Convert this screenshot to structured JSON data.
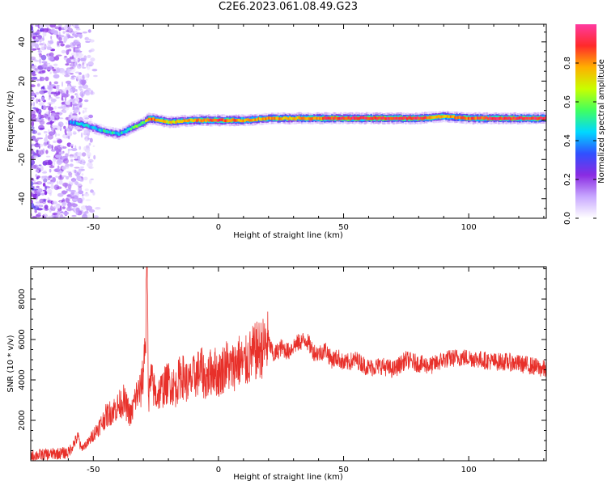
{
  "figure": {
    "title": "C2E6.2023.061.08.49.G23"
  },
  "chart_data": [
    {
      "type": "heatmap",
      "xlabel": "Height of straight line (km)",
      "ylabel": "Frequency (Hz)",
      "xlim": [
        -75,
        131
      ],
      "ylim": [
        -50,
        49
      ],
      "xticks": [
        -50,
        0,
        50,
        100
      ],
      "yticks": [
        -40,
        -20,
        0,
        20,
        40
      ],
      "colorbar": {
        "label": "Normalized spectral amplitude",
        "range": [
          0,
          1
        ],
        "ticks": [
          0.0,
          0.2,
          0.4,
          0.6,
          0.8
        ],
        "colors": [
          "#ffffff",
          "#c8a8ff",
          "#8a2be2",
          "#3050ff",
          "#00d8ff",
          "#40ff60",
          "#c8ff00",
          "#ffb000",
          "#ff2a2a",
          "#ff3aa0"
        ]
      },
      "noise_region_x": [
        -75,
        -48
      ],
      "ridge": [
        {
          "x": -60,
          "y": -1,
          "amp": 0.35
        },
        {
          "x": -55,
          "y": -2,
          "amp": 0.45
        },
        {
          "x": -50,
          "y": -4,
          "amp": 0.4
        },
        {
          "x": -45,
          "y": -6,
          "amp": 0.5
        },
        {
          "x": -40,
          "y": -7,
          "amp": 0.45
        },
        {
          "x": -35,
          "y": -4,
          "amp": 0.55
        },
        {
          "x": -30,
          "y": -1,
          "amp": 0.6
        },
        {
          "x": -28,
          "y": 1,
          "amp": 0.85
        },
        {
          "x": -20,
          "y": -1,
          "amp": 0.7
        },
        {
          "x": -10,
          "y": 0,
          "amp": 0.8
        },
        {
          "x": 0,
          "y": 0,
          "amp": 0.9
        },
        {
          "x": 10,
          "y": 0,
          "amp": 0.75
        },
        {
          "x": 20,
          "y": 1,
          "amp": 0.8
        },
        {
          "x": 30,
          "y": 1,
          "amp": 0.75
        },
        {
          "x": 40,
          "y": 1,
          "amp": 0.85
        },
        {
          "x": 50,
          "y": 1,
          "amp": 0.9
        },
        {
          "x": 60,
          "y": 1,
          "amp": 0.9
        },
        {
          "x": 70,
          "y": 1,
          "amp": 0.9
        },
        {
          "x": 80,
          "y": 1,
          "amp": 0.9
        },
        {
          "x": 90,
          "y": 2,
          "amp": 0.75
        },
        {
          "x": 100,
          "y": 1,
          "amp": 0.85
        },
        {
          "x": 110,
          "y": 1,
          "amp": 0.9
        },
        {
          "x": 120,
          "y": 1,
          "amp": 0.9
        },
        {
          "x": 131,
          "y": 1,
          "amp": 0.9
        }
      ]
    },
    {
      "type": "line",
      "xlabel": "Height of straight line (km)",
      "ylabel": "SNR (10 * v/v)",
      "xlim": [
        -75,
        131
      ],
      "ylim": [
        0,
        9600
      ],
      "xticks": [
        -50,
        0,
        50,
        100
      ],
      "yticks": [
        2000,
        4000,
        6000,
        8000
      ],
      "series": [
        {
          "color": "#e8302a",
          "x": [
            -75,
            -70,
            -65,
            -60,
            -56,
            -55,
            -52,
            -50,
            -47,
            -45,
            -42,
            -40,
            -38,
            -35,
            -33,
            -31,
            -30,
            -29,
            -28.5,
            -28,
            -27,
            -25,
            -22,
            -20,
            -17,
            -15,
            -12,
            -10,
            -7,
            -5,
            -2,
            0,
            3,
            5,
            8,
            10,
            13,
            15,
            18,
            20,
            22,
            25,
            28,
            30,
            33,
            35,
            38,
            40,
            43,
            45,
            48,
            50,
            55,
            60,
            65,
            70,
            75,
            80,
            85,
            90,
            95,
            100,
            105,
            110,
            115,
            120,
            125,
            131
          ],
          "y": [
            250,
            300,
            350,
            400,
            1200,
            600,
            900,
            1300,
            1800,
            2200,
            2500,
            2700,
            3000,
            2200,
            3200,
            3500,
            4500,
            6500,
            9600,
            3000,
            4000,
            3200,
            3600,
            3900,
            3600,
            4300,
            3800,
            4100,
            4500,
            4000,
            4600,
            4200,
            4800,
            4500,
            5000,
            4700,
            5200,
            5400,
            5600,
            5900,
            5200,
            5600,
            5400,
            5700,
            5900,
            6000,
            5400,
            5300,
            5500,
            5000,
            5100,
            4800,
            5000,
            4600,
            4700,
            4500,
            5000,
            4800,
            4700,
            5000,
            5100,
            5100,
            5000,
            4900,
            4900,
            4800,
            4700,
            4500
          ]
        }
      ]
    }
  ]
}
